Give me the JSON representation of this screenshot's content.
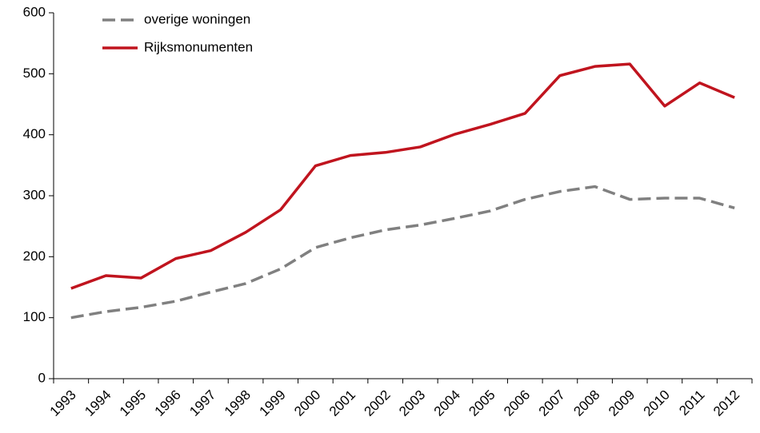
{
  "chart_data": {
    "type": "line",
    "categories": [
      "1993",
      "1994",
      "1995",
      "1996",
      "1997",
      "1998",
      "1999",
      "2000",
      "2001",
      "2002",
      "2003",
      "2004",
      "2005",
      "2006",
      "2007",
      "2008",
      "2009",
      "2010",
      "2011",
      "2012"
    ],
    "series": [
      {
        "name": "overige woningen",
        "color": "#808080",
        "dash": true,
        "values": [
          100,
          110,
          117,
          127,
          142,
          156,
          180,
          215,
          231,
          244,
          252,
          263,
          275,
          294,
          307,
          315,
          294,
          296,
          296,
          280
        ]
      },
      {
        "name": "Rijksmonumenten",
        "color": "#c0141e",
        "dash": false,
        "values": [
          148,
          169,
          165,
          197,
          210,
          240,
          277,
          349,
          366,
          371,
          380,
          401,
          417,
          435,
          497,
          512,
          516,
          447,
          485,
          461
        ]
      }
    ],
    "ylim": [
      0,
      600
    ],
    "yticks": [
      0,
      100,
      200,
      300,
      400,
      500,
      600
    ],
    "grid": false,
    "legend": "top-left"
  }
}
